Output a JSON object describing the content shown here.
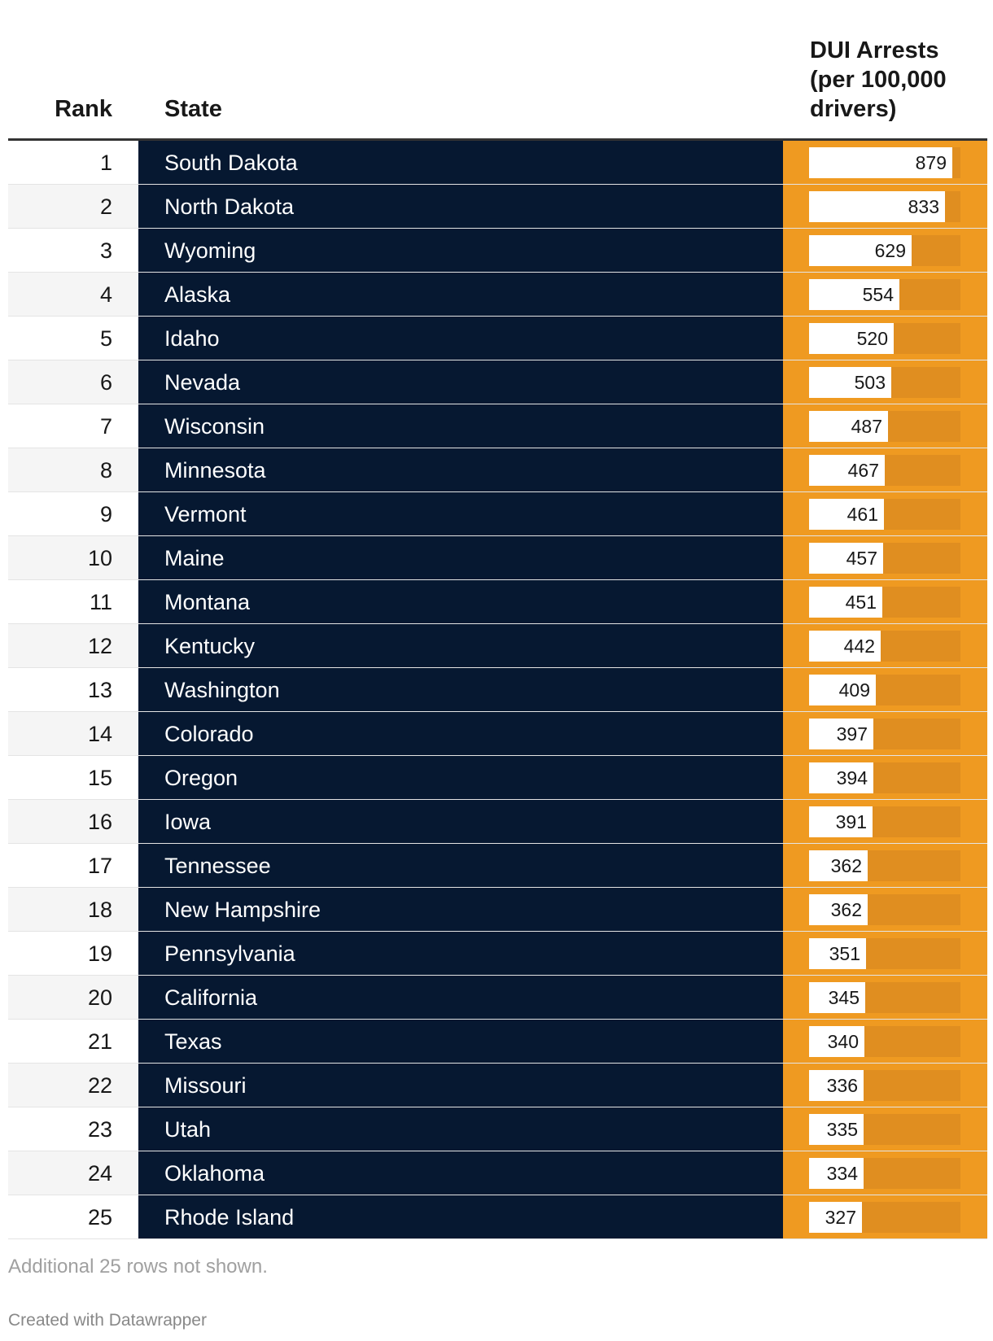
{
  "header": {
    "rank": "Rank",
    "state": "State",
    "value": "DUI Arrests\n(per 100,000\ndrivers)"
  },
  "chart_data": {
    "type": "table",
    "columns": [
      "Rank",
      "State",
      "DUI Arrests (per 100,000 drivers)"
    ],
    "bar_max": 930,
    "rows": [
      {
        "rank": 1,
        "state": "South Dakota",
        "value": 879
      },
      {
        "rank": 2,
        "state": "North Dakota",
        "value": 833
      },
      {
        "rank": 3,
        "state": "Wyoming",
        "value": 629
      },
      {
        "rank": 4,
        "state": "Alaska",
        "value": 554
      },
      {
        "rank": 5,
        "state": "Idaho",
        "value": 520
      },
      {
        "rank": 6,
        "state": "Nevada",
        "value": 503
      },
      {
        "rank": 7,
        "state": "Wisconsin",
        "value": 487
      },
      {
        "rank": 8,
        "state": "Minnesota",
        "value": 467
      },
      {
        "rank": 9,
        "state": "Vermont",
        "value": 461
      },
      {
        "rank": 10,
        "state": "Maine",
        "value": 457
      },
      {
        "rank": 11,
        "state": "Montana",
        "value": 451
      },
      {
        "rank": 12,
        "state": "Kentucky",
        "value": 442
      },
      {
        "rank": 13,
        "state": "Washington",
        "value": 409
      },
      {
        "rank": 14,
        "state": "Colorado",
        "value": 397
      },
      {
        "rank": 15,
        "state": "Oregon",
        "value": 394
      },
      {
        "rank": 16,
        "state": "Iowa",
        "value": 391
      },
      {
        "rank": 17,
        "state": "Tennessee",
        "value": 362
      },
      {
        "rank": 18,
        "state": "New Hampshire",
        "value": 362
      },
      {
        "rank": 19,
        "state": "Pennsylvania",
        "value": 351
      },
      {
        "rank": 20,
        "state": "California",
        "value": 345
      },
      {
        "rank": 21,
        "state": "Texas",
        "value": 340
      },
      {
        "rank": 22,
        "state": "Missouri",
        "value": 336
      },
      {
        "rank": 23,
        "state": "Utah",
        "value": 335
      },
      {
        "rank": 24,
        "state": "Oklahoma",
        "value": 334
      },
      {
        "rank": 25,
        "state": "Rhode Island",
        "value": 327
      }
    ]
  },
  "notes": "Additional 25 rows not shown.",
  "credit": "Created with Datawrapper",
  "colors": {
    "state_bg": "#061831",
    "value_bg": "#ef9a21",
    "bar_track": "#e08e20",
    "bar_fill": "#ffffff"
  }
}
